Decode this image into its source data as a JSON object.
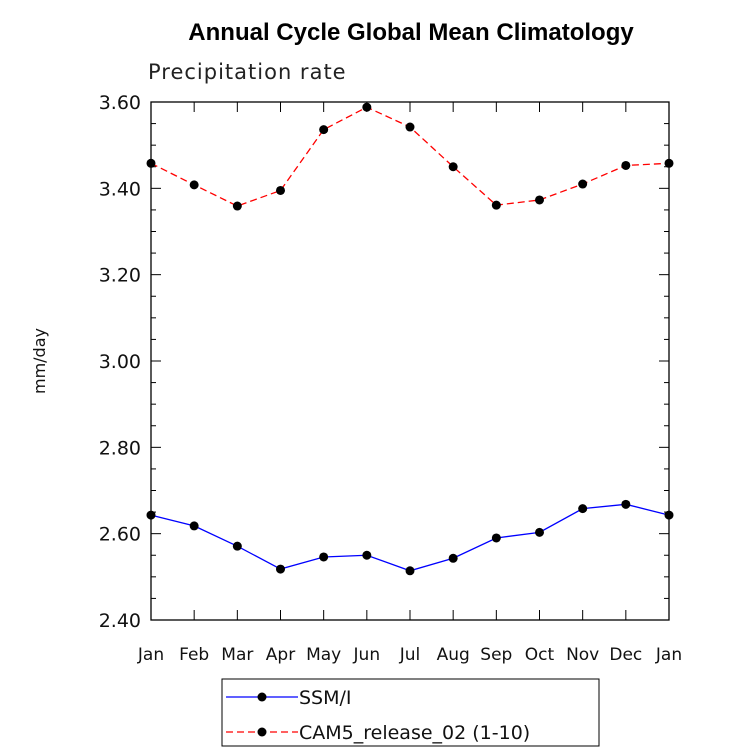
{
  "chart_data": {
    "type": "line",
    "title": "Annual Cycle Global Mean Climatology",
    "subtitle": "Precipitation rate",
    "xlabel": "",
    "ylabel": "mm/day",
    "categories": [
      "Jan",
      "Feb",
      "Mar",
      "Apr",
      "May",
      "Jun",
      "Jul",
      "Aug",
      "Sep",
      "Oct",
      "Nov",
      "Dec",
      "Jan"
    ],
    "ylim": [
      2.4,
      3.6
    ],
    "yticks": [
      "2.40",
      "2.60",
      "2.80",
      "3.00",
      "3.20",
      "3.40",
      "3.60"
    ],
    "legend_position": "bottom",
    "series": [
      {
        "name": "SSM/I",
        "color": "#0000ff",
        "dash": "solid",
        "values": [
          2.643,
          2.618,
          2.571,
          2.518,
          2.546,
          2.55,
          2.514,
          2.543,
          2.59,
          2.603,
          2.658,
          2.668,
          2.643
        ]
      },
      {
        "name": "CAM5_release_02 (1-10)",
        "color": "#ff0000",
        "dash": "dashed",
        "values": [
          3.458,
          3.408,
          3.359,
          3.395,
          3.536,
          3.588,
          3.542,
          3.45,
          3.361,
          3.373,
          3.41,
          3.453,
          3.458
        ]
      }
    ]
  }
}
